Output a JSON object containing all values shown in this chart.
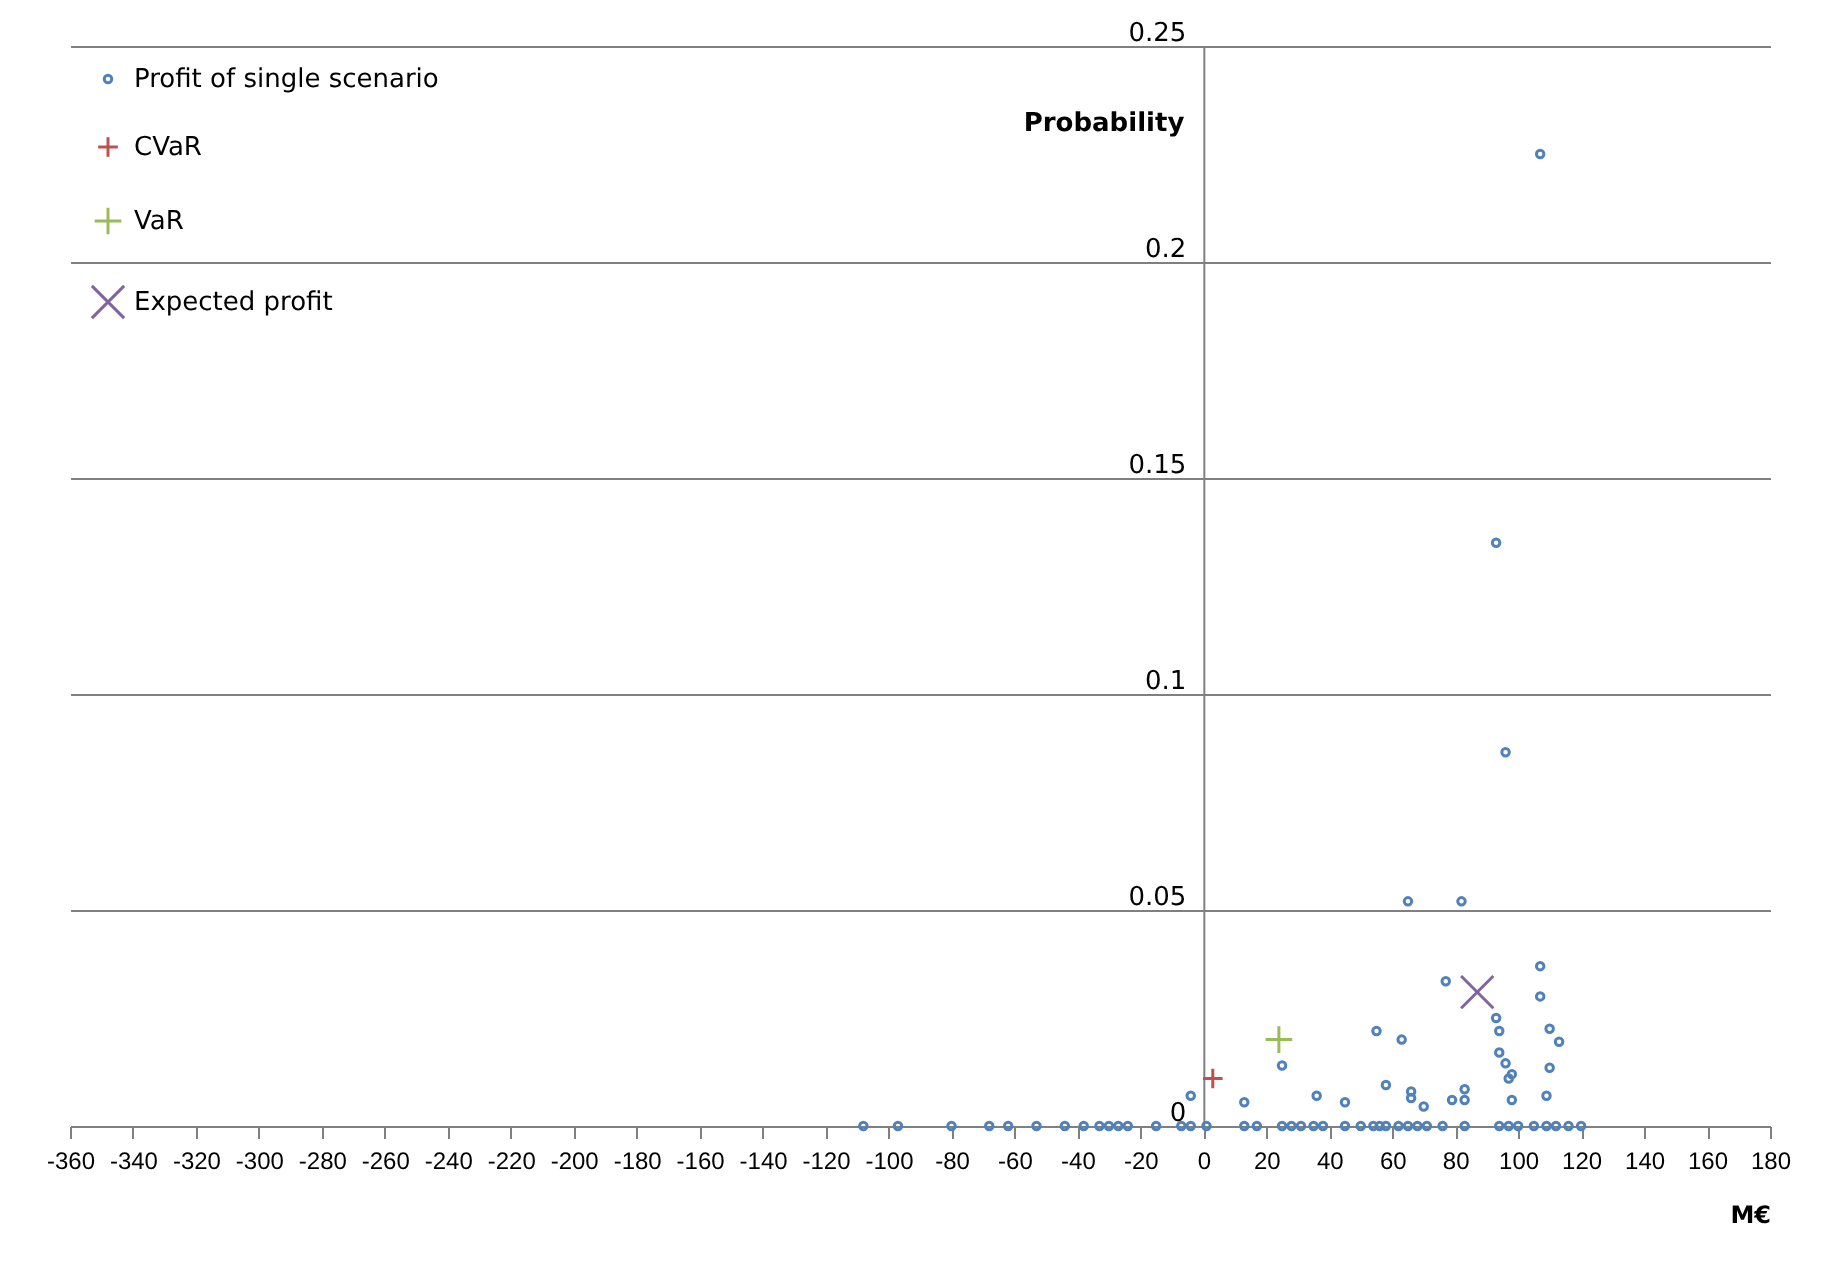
{
  "chart_data": {
    "type": "scatter",
    "xlabel": "M€",
    "ylabel": "Probability",
    "xlim": [
      -360,
      180
    ],
    "xticks": [
      -360,
      -340,
      -320,
      -300,
      -280,
      -260,
      -240,
      -220,
      -200,
      -180,
      -160,
      -140,
      -120,
      -100,
      -80,
      -60,
      -40,
      -20,
      0,
      20,
      40,
      60,
      80,
      100,
      120,
      140,
      160,
      180
    ],
    "ylim": [
      0,
      0.25
    ],
    "yticks": [
      0,
      0.05,
      0.1,
      0.15,
      0.2,
      0.25
    ],
    "grid": "y",
    "legend": "top left",
    "series": [
      {
        "name": "Profit of single scenario",
        "color": "#4f81bd",
        "marker": "circle",
        "x": [
          -108,
          -97,
          -80,
          -68,
          -62,
          -53,
          -44,
          -38,
          -33,
          -30,
          -27,
          -24,
          -15,
          -7,
          -4,
          1,
          13,
          17,
          25,
          28,
          31,
          35,
          38,
          45,
          50,
          54,
          56,
          58,
          62,
          65,
          68,
          71,
          76,
          83,
          94,
          97,
          100,
          105,
          109,
          112,
          116,
          120,
          -4,
          13,
          25,
          36,
          45,
          55,
          63,
          58,
          66,
          66,
          70,
          79,
          83,
          83,
          94,
          96,
          98,
          97,
          98,
          109,
          110,
          113,
          94,
          107,
          107,
          77,
          93,
          110,
          107,
          93,
          96,
          65,
          82
        ],
        "values": [
          0,
          0,
          0,
          0,
          0,
          0,
          0,
          0,
          0,
          0,
          0,
          0,
          0,
          0,
          0,
          0,
          0,
          0,
          0,
          0,
          0,
          0,
          0,
          0,
          0,
          0,
          0,
          0,
          0,
          0,
          0,
          0,
          0,
          0,
          0,
          0,
          0,
          0,
          0,
          0,
          0,
          0,
          0.007,
          0.0055,
          0.014,
          0.007,
          0.0055,
          0.022,
          0.02,
          0.0095,
          0.008,
          0.0065,
          0.0045,
          0.006,
          0.0085,
          0.006,
          0.017,
          0.0145,
          0.012,
          0.011,
          0.006,
          0.007,
          0.0135,
          0.0195,
          0.022,
          0.037,
          0.03,
          0.0335,
          0.025,
          0.0225,
          0.225,
          0.135,
          0.0865,
          0.052,
          0.052
        ]
      },
      {
        "name": "CVaR",
        "color": "#c0504d",
        "marker": "cross",
        "x": [
          3
        ],
        "values": [
          0.011
        ]
      },
      {
        "name": "VaR",
        "color": "#9bbb59",
        "marker": "cross",
        "x": [
          24
        ],
        "values": [
          0.02
        ]
      },
      {
        "name": "Expected profit",
        "color": "#8064a2",
        "marker": "x",
        "x": [
          87
        ],
        "values": [
          0.031
        ]
      }
    ]
  }
}
